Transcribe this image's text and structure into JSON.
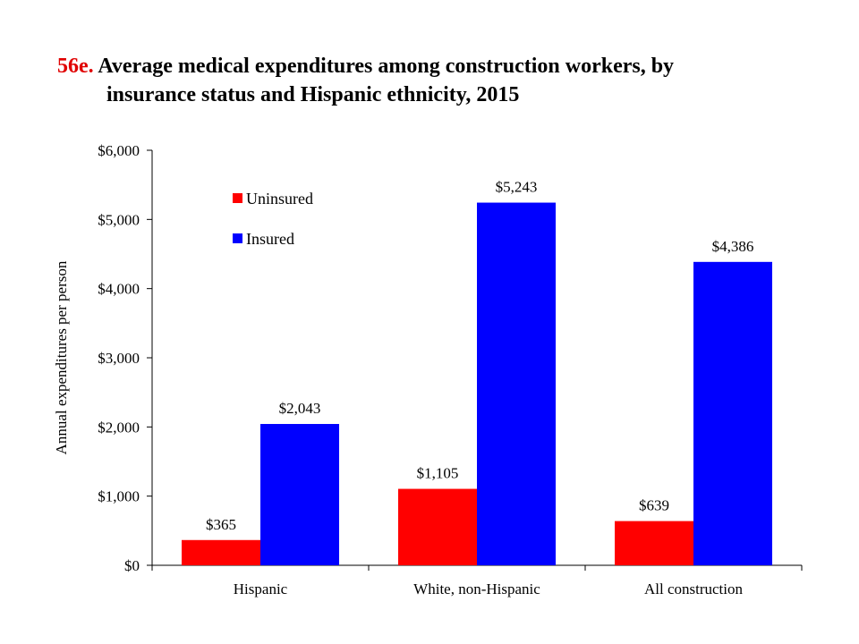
{
  "title": {
    "number": "56e.",
    "line1": "Average medical expenditures among construction workers, by",
    "line2": "insurance status and Hispanic ethnicity, 2015"
  },
  "chart_data": {
    "type": "bar",
    "categories": [
      "Hispanic",
      "White, non-Hispanic",
      "All construction"
    ],
    "series": [
      {
        "name": "Uninsured",
        "color": "#ff0000",
        "values": [
          365,
          1105,
          639
        ],
        "labels": [
          "$365",
          "$1,105",
          "$639"
        ]
      },
      {
        "name": "Insured",
        "color": "#0000ff",
        "values": [
          2043,
          5243,
          4386
        ],
        "labels": [
          "$2,043",
          "$5,243",
          "$4,386"
        ]
      }
    ],
    "ylabel": "Annual expenditures per person",
    "xlabel": "",
    "ylim": [
      0,
      6000
    ],
    "yticks": [
      0,
      1000,
      2000,
      3000,
      4000,
      5000,
      6000
    ],
    "ytick_labels": [
      "$0",
      "$1,000",
      "$2,000",
      "$3,000",
      "$4,000",
      "$5,000",
      "$6,000"
    ],
    "grid": false,
    "legend_position": "top-left"
  }
}
